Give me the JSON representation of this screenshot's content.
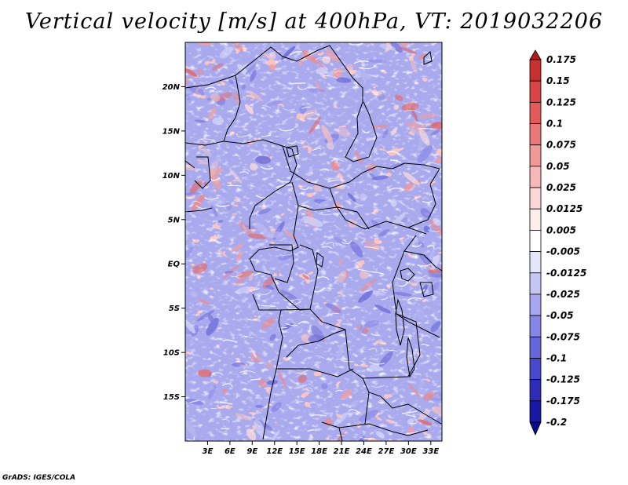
{
  "title": "Vertical velocity [m/s] at 400hPa, VT: 2019032206",
  "footer": "GrADS: IGES/COLA",
  "map": {
    "lon_range": [
      0,
      34.5
    ],
    "lat_range": [
      -20,
      25
    ],
    "lat_ticks": [
      "20N",
      "15N",
      "10N",
      "5N",
      "EQ",
      "5S",
      "10S",
      "15S"
    ],
    "lat_values": [
      20,
      15,
      10,
      5,
      0,
      -5,
      -10,
      -15
    ],
    "lon_ticks": [
      "3E",
      "6E",
      "9E",
      "12E",
      "15E",
      "18E",
      "21E",
      "24E",
      "27E",
      "30E",
      "33E"
    ],
    "lon_values": [
      3,
      6,
      9,
      12,
      15,
      18,
      21,
      24,
      27,
      30,
      33
    ]
  },
  "colorbar": {
    "labels": [
      "0.175",
      "0.15",
      "0.125",
      "0.1",
      "0.075",
      "0.05",
      "0.025",
      "0.0125",
      "0.005",
      "-0.005",
      "-0.0125",
      "-0.025",
      "-0.05",
      "-0.075",
      "-0.1",
      "-0.125",
      "-0.175",
      "-0.2"
    ],
    "colors": [
      "#b01c1c",
      "#c83030",
      "#d84545",
      "#e25a5a",
      "#eb7878",
      "#f19898",
      "#f6b8b8",
      "#fad6d6",
      "#fdeded",
      "#ffffff",
      "#e6e6fa",
      "#c6c6f4",
      "#a6a6ee",
      "#8686e6",
      "#6666dc",
      "#4848cc",
      "#2c2cb8",
      "#1818a4",
      "#0a0a8c"
    ]
  }
}
